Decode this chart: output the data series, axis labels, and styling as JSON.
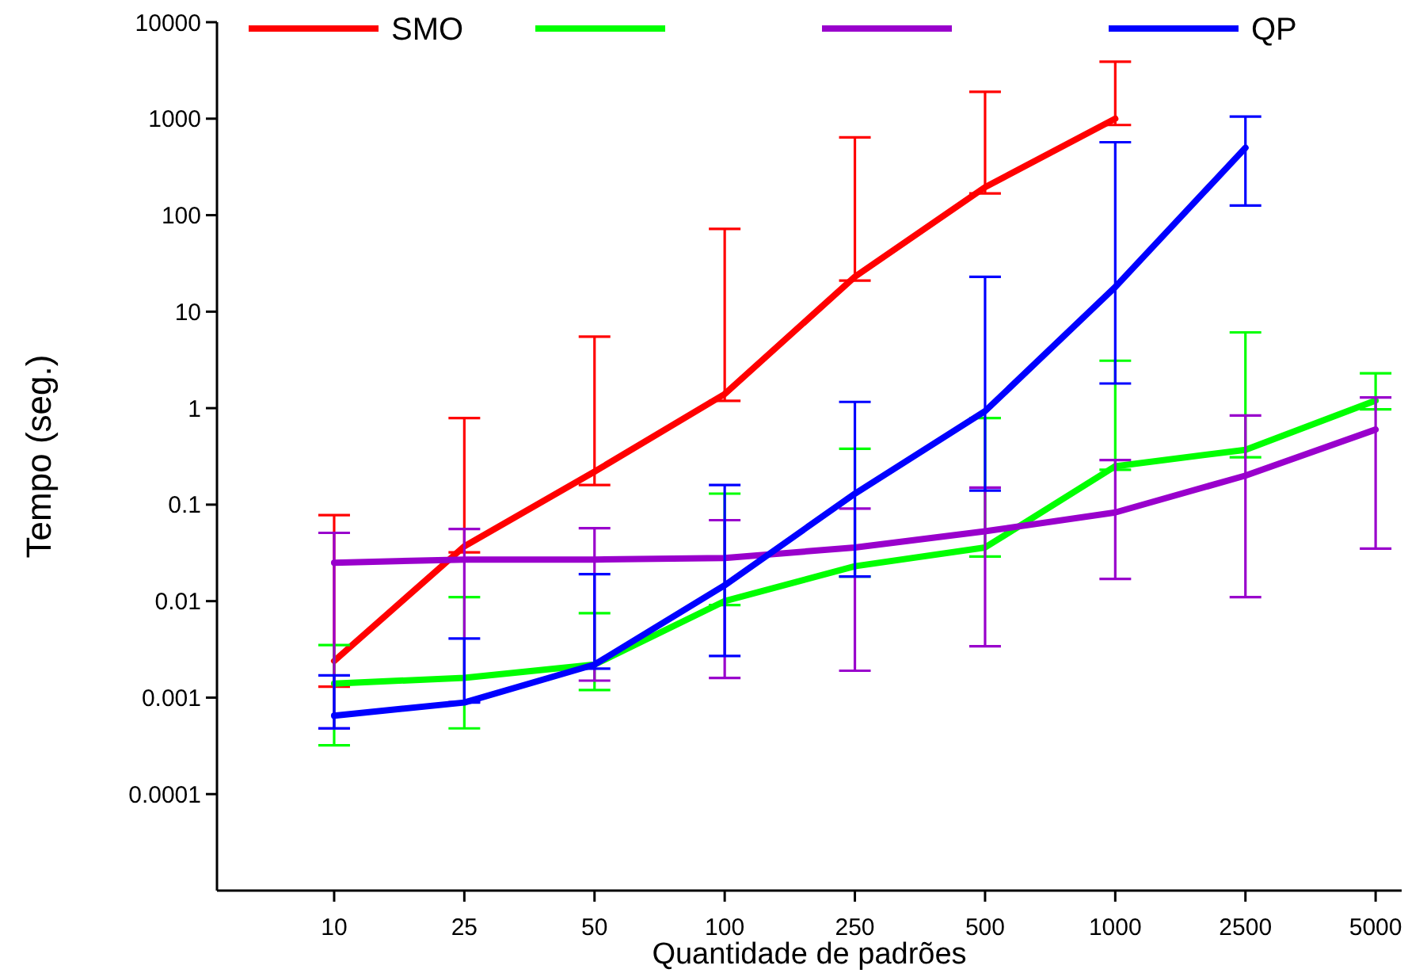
{
  "chart_data": {
    "type": "line",
    "xlabel": "Quantidade de padrões",
    "ylabel": "Tempo (seg.)",
    "categories": [
      "10",
      "25",
      "50",
      "100",
      "250",
      "500",
      "1000",
      "2500",
      "5000"
    ],
    "log": "y",
    "ylim": [
      1e-05,
      10000
    ],
    "yticks": [
      0.0001,
      0.001,
      0.01,
      0.1,
      1,
      10,
      100,
      1000,
      10000
    ],
    "legend": "top",
    "grid": false,
    "marker": "none",
    "line_style": "solid",
    "series": [
      {
        "name": "SMO",
        "color": "#ff0000",
        "values": [
          0.0024,
          0.037,
          0.22,
          1.4,
          23,
          195,
          1000,
          null,
          null
        ],
        "errors": [
          [
            0.0013,
            0.078
          ],
          [
            0.032,
            0.79
          ],
          [
            0.16,
            5.5
          ],
          [
            1.19,
            72
          ],
          [
            21,
            640
          ],
          [
            168,
            1900
          ],
          [
            860,
            3900
          ],
          null,
          null
        ]
      },
      {
        "color": "#00ff00",
        "values": [
          0.0014,
          0.0016,
          0.0022,
          0.01,
          0.023,
          0.036,
          0.25,
          0.37,
          1.2
        ],
        "errors": [
          [
            0.00032,
            0.0035
          ],
          [
            0.00048,
            0.011
          ],
          [
            0.0012,
            0.0075
          ],
          [
            0.0091,
            0.13
          ],
          [
            0.018,
            0.38
          ],
          [
            0.029,
            0.79
          ],
          [
            0.23,
            3.1
          ],
          [
            0.31,
            6.1
          ],
          [
            0.97,
            2.3
          ]
        ]
      },
      {
        "color": "#9900cc",
        "values": [
          0.025,
          0.027,
          0.027,
          0.028,
          0.036,
          0.053,
          0.083,
          0.2,
          0.6
        ],
        "errors": [
          [
            0.00048,
            0.051
          ],
          [
            0.0009,
            0.056
          ],
          [
            0.0015,
            0.057
          ],
          [
            0.0016,
            0.069
          ],
          [
            0.0019,
            0.091
          ],
          [
            0.0034,
            0.15
          ],
          [
            0.017,
            0.29
          ],
          [
            0.011,
            0.84
          ],
          [
            0.035,
            1.29
          ]
        ]
      },
      {
        "name": "QP",
        "color": "#0000ff",
        "values": [
          0.00065,
          0.00089,
          0.0022,
          0.0146,
          0.13,
          0.93,
          18,
          500,
          null
        ],
        "errors": [
          [
            0.00048,
            0.0017
          ],
          [
            0.00089,
            0.0041
          ],
          [
            0.002,
            0.019
          ],
          [
            0.0027,
            0.16
          ],
          [
            0.018,
            1.16
          ],
          [
            0.14,
            23
          ],
          [
            1.8,
            570
          ],
          [
            126,
            1050
          ],
          null
        ]
      }
    ]
  }
}
